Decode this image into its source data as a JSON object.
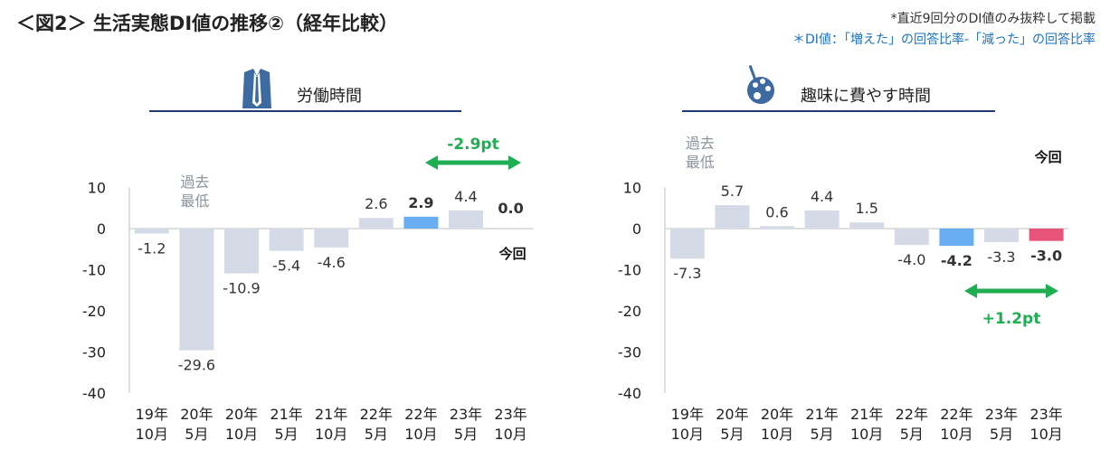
{
  "title": "＜図2＞ 生活実態DI値の推移②（経年比較）",
  "notes": {
    "line1": "*直近9回分のDI値のみ抜粋して掲載",
    "line2": "＊DI値：「増えた」の回答比率-「減った」の回答比率"
  },
  "colors": {
    "bar_default": "#d5dbe6",
    "bar_previous": "#6aaef2",
    "bar_current_left": "#d5dbe6",
    "bar_current_right": "#e8537a",
    "arrow": "#1fae52",
    "panel_line": "#1f3b73",
    "axis": "#bfbfbf",
    "icon": "#3d6aa0"
  },
  "chart_data": [
    {
      "type": "bar",
      "title": "労働時間",
      "icon": "shirt-tie-icon",
      "categories": [
        "19年\n10月",
        "20年\n5月",
        "20年\n10月",
        "21年\n5月",
        "21年\n10月",
        "22年\n5月",
        "22年\n10月",
        "23年\n5月",
        "23年\n10月"
      ],
      "values": [
        -1.2,
        -29.6,
        -10.9,
        -5.4,
        -4.6,
        2.6,
        2.9,
        4.4,
        0.0
      ],
      "value_labels": [
        "-1.2",
        "-29.6",
        "-10.9",
        "-5.4",
        "-4.6",
        "2.6",
        "2.9",
        "4.4",
        "0.0"
      ],
      "bold_indices": [
        6,
        8
      ],
      "yticks": [
        10,
        0,
        -10,
        -20,
        -30,
        -40
      ],
      "ylim": [
        -40,
        10
      ],
      "annotations": {
        "lowest": {
          "text": "過去\n最低",
          "index": 1
        },
        "current": {
          "text": "今回",
          "index": 8
        },
        "change": {
          "text": "-2.9pt",
          "from_index": 6,
          "to_index": 8
        }
      }
    },
    {
      "type": "bar",
      "title": "趣味に費やす時間",
      "icon": "paint-palette-icon",
      "categories": [
        "19年\n10月",
        "20年\n5月",
        "20年\n10月",
        "21年\n5月",
        "21年\n10月",
        "22年\n5月",
        "22年\n10月",
        "23年\n5月",
        "23年\n10月"
      ],
      "values": [
        -7.3,
        5.7,
        0.6,
        4.4,
        1.5,
        -4.0,
        -4.2,
        -3.3,
        -3.0
      ],
      "value_labels": [
        "-7.3",
        "5.7",
        "0.6",
        "4.4",
        "1.5",
        "-4.0",
        "-4.2",
        "-3.3",
        "-3.0"
      ],
      "bold_indices": [
        6,
        8
      ],
      "yticks": [
        10,
        0,
        -10,
        -20,
        -30,
        -40
      ],
      "ylim": [
        -40,
        10
      ],
      "annotations": {
        "lowest": {
          "text": "過去\n最低",
          "index": 0
        },
        "current": {
          "text": "今回",
          "index": 8
        },
        "change": {
          "text": "+1.2pt",
          "from_index": 6,
          "to_index": 8
        }
      }
    }
  ]
}
